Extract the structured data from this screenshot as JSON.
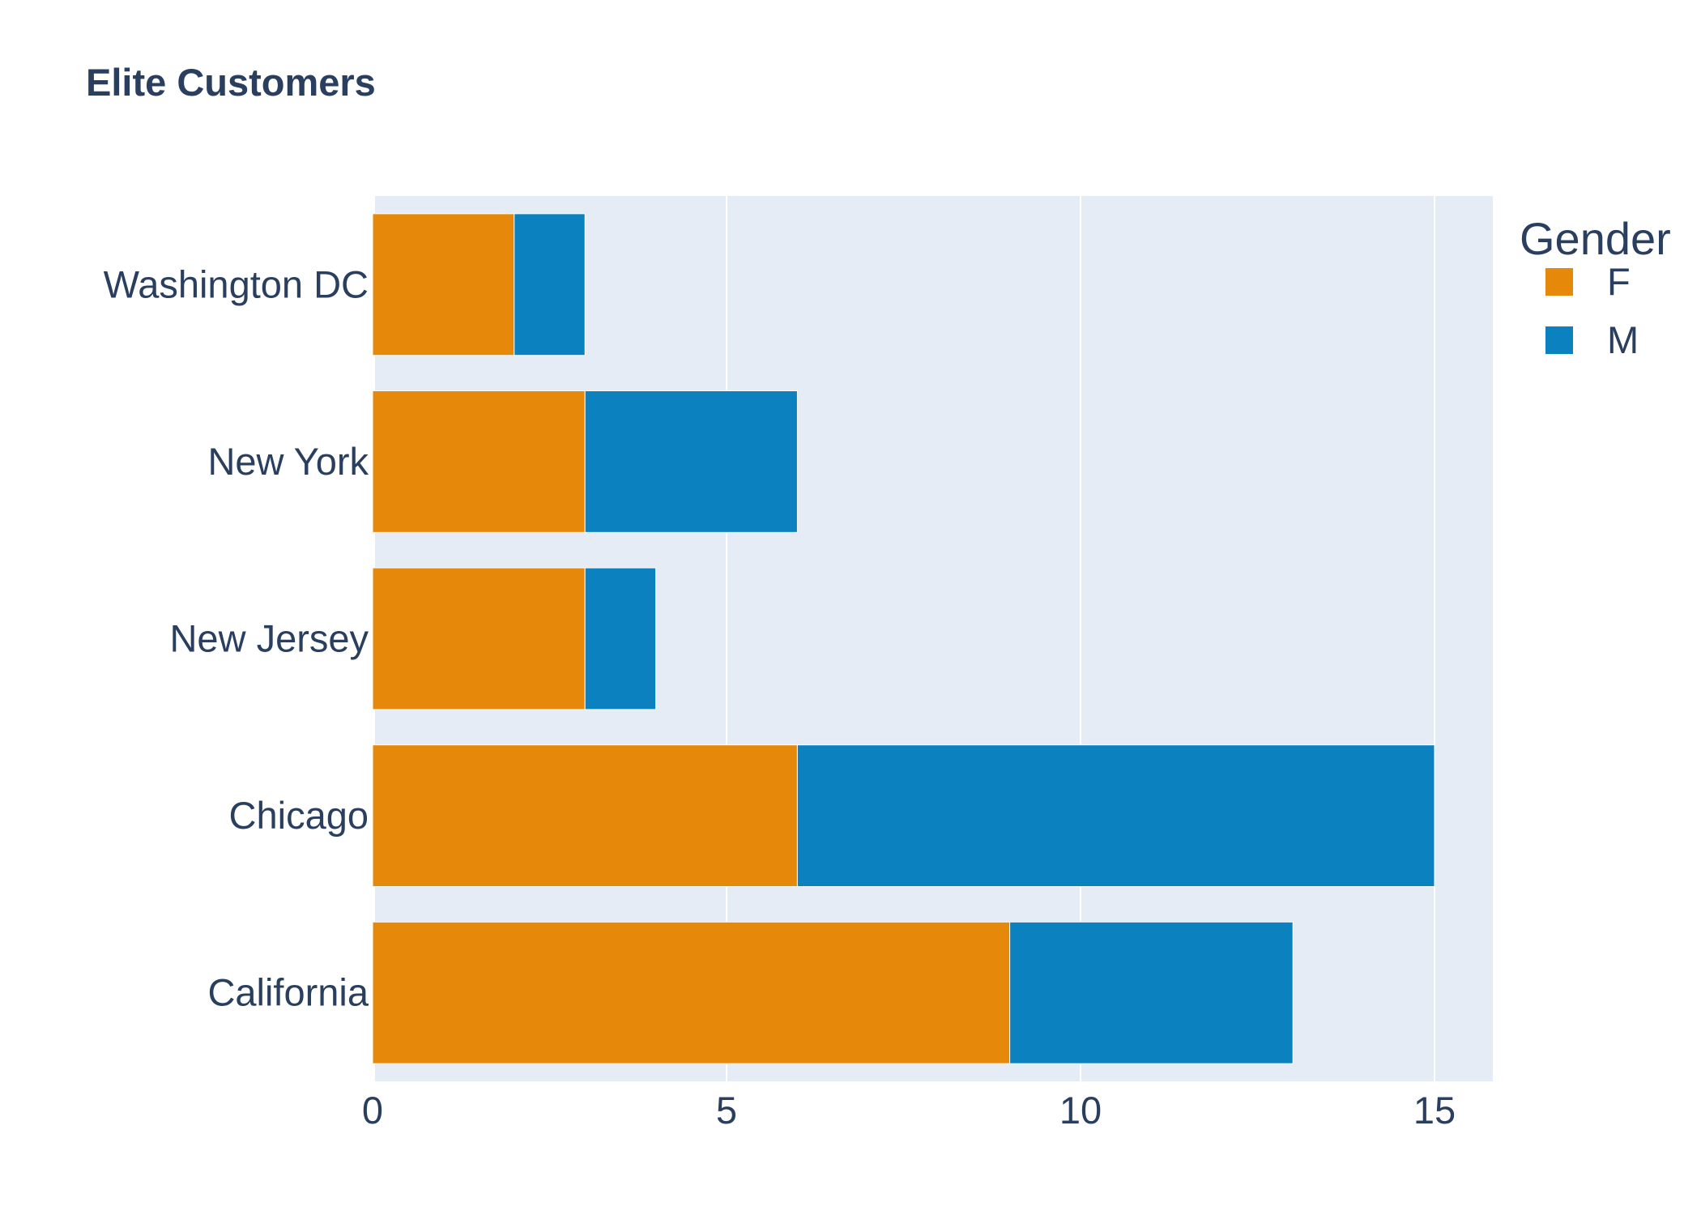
{
  "chart_data": {
    "type": "bar",
    "orientation": "horizontal",
    "barmode": "stack",
    "title": "Elite Customers",
    "xlabel": "",
    "ylabel": "",
    "categories": [
      "California",
      "Chicago",
      "New Jersey",
      "New York",
      "Washington DC"
    ],
    "series": [
      {
        "name": "F",
        "values": [
          9,
          6,
          3,
          3,
          2
        ],
        "color": "#e6880a"
      },
      {
        "name": "M",
        "values": [
          4,
          9,
          1,
          3,
          1
        ],
        "color": "#0b81bf"
      }
    ],
    "xlim": [
      0,
      15.8
    ],
    "xticks": [
      0,
      5,
      10,
      15
    ],
    "grid": true,
    "legend": {
      "title": "Gender",
      "placement": "top-right"
    },
    "colors": {
      "plot_background": "#e5ecf6",
      "grid": "#ffffff",
      "text": "#2a3f5f"
    }
  }
}
